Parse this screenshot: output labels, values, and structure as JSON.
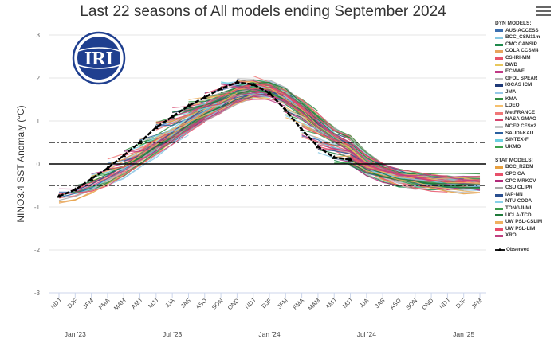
{
  "chart_data": {
    "type": "line",
    "title": "Last 22 seasons of All models ending September 2024",
    "ylabel": "NINO3.4 SST Anomaly (°C)",
    "xlabel": "",
    "ylim": [
      -3,
      3
    ],
    "yticks": [
      "-3",
      "-2",
      "-1",
      "0",
      "1",
      "2",
      "3"
    ],
    "ref_lines": [
      0.5,
      -0.5
    ],
    "seasons": [
      "NDJ",
      "DJF",
      "JFM",
      "FMA",
      "MAM",
      "AMJ",
      "MJJ",
      "JJA",
      "JAS",
      "ASO",
      "SON",
      "OND",
      "NDJ",
      "DJF",
      "JFM",
      "FMA",
      "MAM",
      "AMJ",
      "MJJ",
      "JJA",
      "JAS",
      "ASO",
      "SON",
      "OND",
      "NDJ",
      "DJF",
      "JFM"
    ],
    "month_labels": [
      {
        "label": "Jan '23",
        "index": 1
      },
      {
        "label": "Jul '23",
        "index": 7
      },
      {
        "label": "Jan '24",
        "index": 13
      },
      {
        "label": "Jul '24",
        "index": 19
      },
      {
        "label": "Jan '25",
        "index": 25
      }
    ],
    "observed": {
      "name": "Observed",
      "values": [
        -0.75,
        -0.6,
        -0.35,
        -0.1,
        0.2,
        0.5,
        0.85,
        1.1,
        1.35,
        1.55,
        1.75,
        1.9,
        1.85,
        1.65,
        1.25,
        0.8,
        0.4,
        0.15,
        0.1
      ]
    },
    "forecast_runs_per_model": 22,
    "dyn_header": "DYN MODELS:",
    "dyn_models": [
      {
        "name": "AUS-ACCESS",
        "color": "#3b6fb0"
      },
      {
        "name": "BCC_CSM11m",
        "color": "#86c8e3"
      },
      {
        "name": "CMC CANSIP",
        "color": "#1f8a4c"
      },
      {
        "name": "COLA CCSM4",
        "color": "#e8a35c"
      },
      {
        "name": "CS-IRI-MM",
        "color": "#e8536a"
      },
      {
        "name": "DWD",
        "color": "#e8c85c"
      },
      {
        "name": "ECMWF",
        "color": "#c03a86"
      },
      {
        "name": "GFDL SPEAR",
        "color": "#b8b8b8"
      },
      {
        "name": "IOCAS ICM",
        "color": "#1f3a78"
      },
      {
        "name": "JMA",
        "color": "#96c8e8"
      },
      {
        "name": "KMA",
        "color": "#2e8b3e"
      },
      {
        "name": "LDEO",
        "color": "#f5c06e"
      },
      {
        "name": "MetFRANCE",
        "color": "#f07878"
      },
      {
        "name": "NASA GMAO",
        "color": "#d6456e"
      },
      {
        "name": "NCEP CFSv2",
        "color": "#c8c8c8"
      },
      {
        "name": "SAUDI-KAU",
        "color": "#2a5fa0"
      },
      {
        "name": "SINTEX-F",
        "color": "#6ad0e0"
      },
      {
        "name": "UKMO",
        "color": "#3aa04a"
      }
    ],
    "stat_header": "STAT MODELS:",
    "stat_models": [
      {
        "name": "BCC_RZDM",
        "color": "#e8a040"
      },
      {
        "name": "CPC CA",
        "color": "#e8506a"
      },
      {
        "name": "CPC MRKOV",
        "color": "#b02a7a"
      },
      {
        "name": "CSU CLIPR",
        "color": "#a8a8a8"
      },
      {
        "name": "IAP-NN",
        "color": "#2a4f90"
      },
      {
        "name": "NTU CODA",
        "color": "#86d0e8"
      },
      {
        "name": "TONGJI-ML",
        "color": "#3a9a4a"
      },
      {
        "name": "UCLA-TCD",
        "color": "#1f7a3a"
      },
      {
        "name": "UW PSL-CSLIM",
        "color": "#f0b060"
      },
      {
        "name": "UW PSL-LIM",
        "color": "#e84a6a"
      },
      {
        "name": "XRO",
        "color": "#c04080"
      }
    ],
    "observed_legend": "Observed"
  },
  "logo_text": "IRI"
}
